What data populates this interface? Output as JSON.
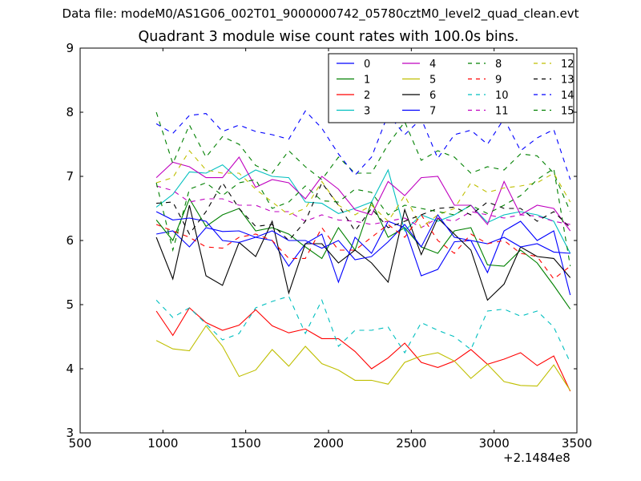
{
  "figure": {
    "suptitle": "Data file: modeM0/AS1G06_002T01_9000000742_05780cztM0_level2_quad_clean.evt",
    "x_offset_label": "+2.1484e8"
  },
  "chart_data": {
    "type": "line",
    "title": "Quadrant 3 module wise count rates with 100.0s bins.",
    "xlabel": "",
    "ylabel": "",
    "xlim": [
      500,
      3500
    ],
    "ylim": [
      3,
      9
    ],
    "xticks": [
      500,
      1000,
      1500,
      2000,
      2500,
      3000,
      3500
    ],
    "yticks": [
      3,
      4,
      5,
      6,
      7,
      8,
      9
    ],
    "x_offset": 214840000,
    "legend_position": "top-right",
    "legend_columns": 4,
    "grid": false,
    "x": [
      960,
      1060,
      1160,
      1260,
      1360,
      1460,
      1560,
      1660,
      1760,
      1860,
      1960,
      2060,
      2160,
      2260,
      2360,
      2460,
      2560,
      2660,
      2760,
      2860,
      2960,
      3060,
      3160,
      3260,
      3360,
      3460
    ],
    "series": [
      {
        "name": "0",
        "color": "#0000ff",
        "dash": "solid",
        "values": [
          6.1,
          6.15,
          5.9,
          6.2,
          6.14,
          6.15,
          6.05,
          6.0,
          5.6,
          5.95,
          6.1,
          5.35,
          6.05,
          5.8,
          6.3,
          6.2,
          5.45,
          5.55,
          5.98,
          6.0,
          5.5,
          6.15,
          6.3,
          6.0,
          6.15,
          5.15
        ]
      },
      {
        "name": "1",
        "color": "#008000",
        "dash": "solid",
        "values": [
          6.32,
          6.0,
          6.65,
          6.22,
          6.4,
          6.5,
          6.15,
          6.2,
          6.1,
          5.9,
          5.72,
          6.2,
          5.85,
          6.6,
          6.05,
          6.2,
          5.9,
          5.8,
          6.15,
          6.2,
          5.62,
          5.6,
          5.85,
          5.65,
          5.3,
          4.93
        ]
      },
      {
        "name": "2",
        "color": "#ff0000",
        "dash": "solid",
        "values": [
          4.9,
          4.52,
          4.95,
          4.72,
          4.6,
          4.68,
          4.92,
          4.67,
          4.56,
          4.62,
          4.47,
          4.47,
          4.27,
          4.0,
          4.17,
          4.4,
          4.1,
          4.02,
          4.12,
          4.3,
          4.07,
          4.15,
          4.25,
          4.05,
          4.2,
          3.65
        ]
      },
      {
        "name": "3",
        "color": "#00bfbf",
        "dash": "solid",
        "values": [
          6.52,
          6.72,
          7.07,
          7.05,
          7.18,
          6.95,
          7.1,
          7.0,
          6.98,
          6.6,
          6.58,
          6.42,
          6.5,
          6.6,
          7.1,
          6.15,
          6.4,
          6.3,
          6.4,
          6.55,
          6.28,
          6.4,
          6.45,
          6.4,
          6.3,
          5.8
        ]
      },
      {
        "name": "4",
        "color": "#bf00bf",
        "dash": "solid",
        "values": [
          6.98,
          7.22,
          7.15,
          6.98,
          6.98,
          7.3,
          6.83,
          6.95,
          6.9,
          6.65,
          7.0,
          6.8,
          6.48,
          6.4,
          6.92,
          6.7,
          6.98,
          7.0,
          6.55,
          6.55,
          6.25,
          6.92,
          6.4,
          6.55,
          6.5,
          6.15
        ]
      },
      {
        "name": "5",
        "color": "#bfbf00",
        "dash": "solid",
        "values": [
          4.44,
          4.31,
          4.28,
          4.67,
          4.35,
          3.88,
          3.98,
          4.3,
          4.04,
          4.35,
          4.08,
          3.98,
          3.82,
          3.82,
          3.76,
          4.1,
          4.2,
          4.25,
          4.12,
          3.85,
          4.07,
          3.8,
          3.74,
          3.73,
          4.06,
          3.66
        ]
      },
      {
        "name": "6",
        "color": "#000000",
        "dash": "solid",
        "values": [
          6.05,
          5.4,
          6.55,
          5.45,
          5.3,
          5.97,
          5.75,
          6.3,
          5.18,
          5.95,
          5.95,
          5.65,
          5.85,
          5.65,
          5.35,
          6.48,
          5.78,
          6.35,
          6.1,
          5.85,
          5.07,
          5.32,
          5.9,
          5.75,
          5.72,
          5.42
        ]
      },
      {
        "name": "7",
        "color": "#0000ff",
        "dash": "solid",
        "values": [
          6.45,
          6.32,
          6.35,
          6.3,
          6.0,
          5.97,
          6.05,
          6.15,
          6.0,
          6.0,
          5.88,
          6.0,
          5.7,
          5.75,
          5.98,
          6.25,
          5.9,
          6.4,
          6.05,
          6.0,
          5.95,
          6.05,
          5.9,
          5.95,
          5.82,
          5.8
        ]
      },
      {
        "name": "8",
        "color": "#008000",
        "dash": "dashed",
        "values": [
          8.0,
          7.2,
          7.8,
          7.3,
          7.62,
          7.5,
          7.17,
          7.05,
          7.4,
          7.15,
          6.95,
          7.3,
          7.05,
          7.05,
          7.5,
          7.85,
          7.25,
          7.4,
          7.3,
          7.05,
          7.15,
          7.1,
          7.35,
          7.32,
          7.05,
          6.45
        ]
      },
      {
        "name": "9",
        "color": "#ff0000",
        "dash": "dashed",
        "values": [
          6.25,
          6.15,
          6.05,
          5.9,
          5.88,
          6.05,
          6.1,
          6.0,
          5.72,
          5.72,
          6.2,
          5.85,
          5.85,
          6.05,
          6.25,
          6.05,
          6.4,
          6.0,
          5.8,
          6.1,
          5.95,
          6.0,
          5.8,
          5.75,
          5.4,
          5.6
        ]
      },
      {
        "name": "10",
        "color": "#00bfbf",
        "dash": "dashed",
        "values": [
          5.07,
          4.8,
          4.95,
          4.7,
          4.45,
          4.55,
          4.95,
          5.05,
          5.13,
          4.55,
          5.07,
          4.35,
          4.6,
          4.6,
          4.65,
          4.25,
          4.72,
          4.6,
          4.5,
          4.3,
          4.9,
          4.93,
          4.82,
          4.9,
          4.65,
          4.1
        ]
      },
      {
        "name": "11",
        "color": "#bf00bf",
        "dash": "dashed",
        "values": [
          6.85,
          6.78,
          6.6,
          6.65,
          6.65,
          6.55,
          6.55,
          6.45,
          6.45,
          6.3,
          6.4,
          6.32,
          6.3,
          6.25,
          6.3,
          6.35,
          6.2,
          6.35,
          6.3,
          6.45,
          6.4,
          6.35,
          6.4,
          6.38,
          6.3,
          6.25
        ]
      },
      {
        "name": "12",
        "color": "#bfbf00",
        "dash": "dashed",
        "values": [
          6.9,
          6.98,
          7.4,
          7.1,
          7.05,
          7.05,
          6.8,
          6.6,
          6.4,
          6.5,
          6.92,
          6.55,
          6.4,
          6.55,
          6.3,
          6.7,
          6.2,
          6.4,
          6.5,
          6.9,
          6.75,
          6.82,
          6.85,
          6.9,
          7.05,
          6.6
        ]
      },
      {
        "name": "13",
        "color": "#000000",
        "dash": "dashed",
        "values": [
          6.58,
          6.6,
          6.1,
          6.45,
          6.9,
          6.5,
          6.22,
          6.25,
          6.0,
          6.3,
          6.9,
          6.55,
          6.15,
          6.5,
          6.2,
          6.3,
          6.4,
          6.5,
          6.52,
          6.4,
          6.6,
          6.5,
          6.5,
          6.3,
          6.45,
          6.2
        ]
      },
      {
        "name": "14",
        "color": "#0000ff",
        "dash": "dashed",
        "values": [
          7.82,
          7.67,
          7.95,
          7.98,
          7.7,
          7.8,
          7.7,
          7.65,
          7.58,
          8.02,
          7.75,
          7.35,
          7.02,
          7.3,
          7.97,
          7.65,
          7.9,
          7.28,
          7.65,
          7.72,
          7.5,
          7.9,
          7.4,
          7.6,
          7.73,
          6.95
        ]
      },
      {
        "name": "15",
        "color": "#008000",
        "dash": "dashed",
        "values": [
          6.9,
          5.85,
          6.8,
          6.9,
          6.7,
          6.9,
          6.95,
          6.5,
          6.6,
          6.85,
          6.62,
          6.6,
          6.8,
          6.75,
          6.4,
          6.55,
          6.5,
          6.45,
          6.4,
          6.55,
          6.42,
          6.55,
          6.7,
          6.95,
          7.12,
          5.6
        ]
      }
    ]
  }
}
